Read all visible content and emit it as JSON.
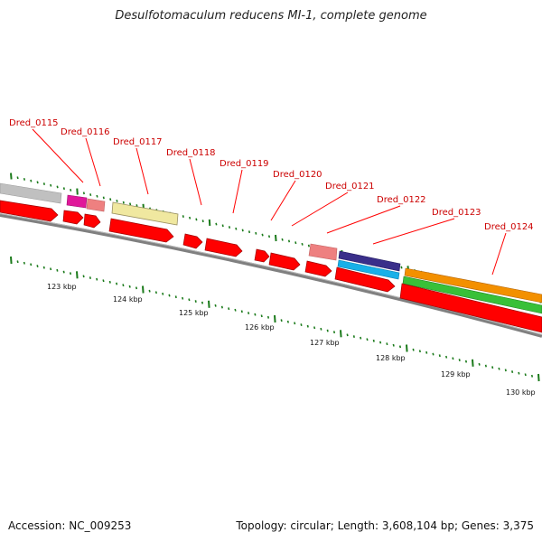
{
  "title": "Desulfotomaculum reducens MI-1, complete genome",
  "footer": {
    "accession": "Accession: NC_009253",
    "stats": "Topology: circular; Length: 3,608,104 bp; Genes: 3,375"
  },
  "colors": {
    "backbone": "#808080",
    "cds": "#ff0000",
    "label": "#cc0000",
    "tick": "#1a7a1a",
    "gray_feature": "#c0c0c0",
    "magenta_feature": "#e0189a",
    "pink_feature": "#ee8080",
    "yellow_feature": "#f0e8a0",
    "navy_feature": "#3a2f8a",
    "cyan_feature": "#18b0e8",
    "orange_feature": "#f39000",
    "green_feature": "#38c038"
  },
  "gene_labels": [
    "Dred_0115",
    "Dred_0116",
    "Dred_0117",
    "Dred_0118",
    "Dred_0119",
    "Dred_0120",
    "Dred_0121",
    "Dred_0122",
    "Dred_0123",
    "Dred_0124"
  ],
  "tick_labels": [
    "123 kbp",
    "124 kbp",
    "125 kbp",
    "126 kbp",
    "127 kbp",
    "128 kbp",
    "129 kbp",
    "130 kbp"
  ]
}
